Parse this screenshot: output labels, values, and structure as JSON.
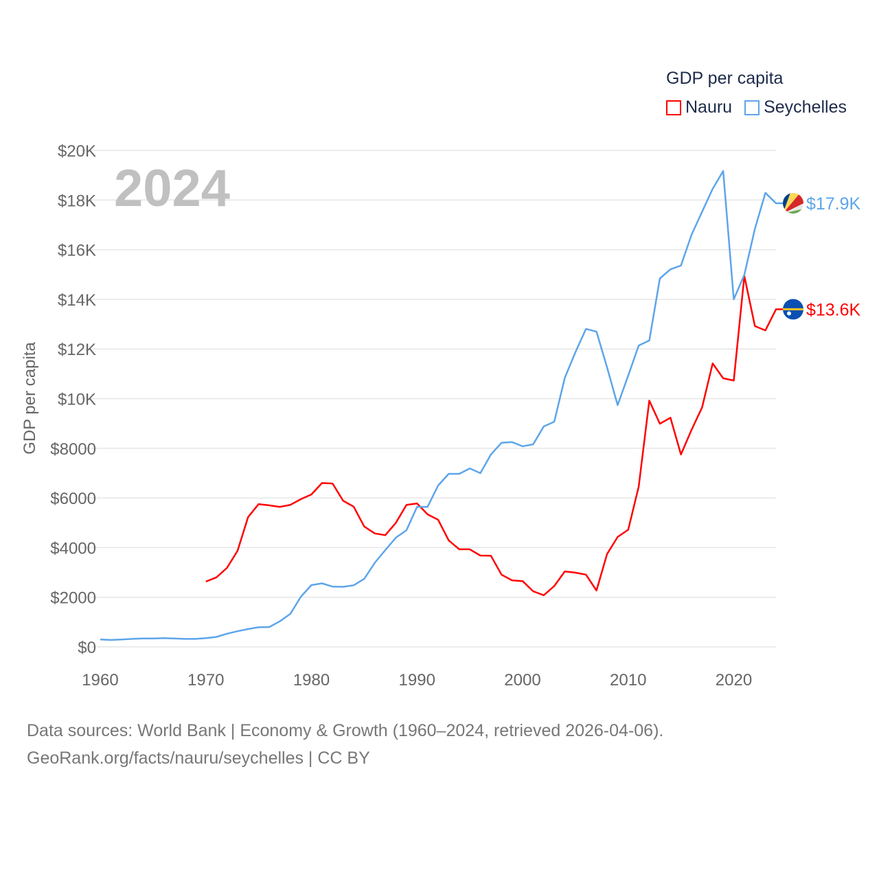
{
  "chart_data": {
    "type": "line",
    "title": "GDP per capita",
    "ylabel": "GDP per capita",
    "xlabel": "",
    "year_watermark": "2024",
    "xlim": [
      1960,
      2024
    ],
    "ylim": [
      0,
      20000
    ],
    "x_ticks": [
      1960,
      1970,
      1980,
      1990,
      2000,
      2010,
      2020
    ],
    "x_tick_labels": [
      "1960",
      "1970",
      "1980",
      "1990",
      "2000",
      "2010",
      "2020"
    ],
    "y_ticks": [
      0,
      2000,
      4000,
      6000,
      8000,
      10000,
      12000,
      14000,
      16000,
      18000,
      20000
    ],
    "y_tick_labels": [
      "$0",
      "$2000",
      "$4000",
      "$6000",
      "$8000",
      "$10K",
      "$12K",
      "$14K",
      "$16K",
      "$18K",
      "$20K"
    ],
    "grid": true,
    "legend_placement": "top-right",
    "series": [
      {
        "name": "Nauru",
        "color": "#ff0000",
        "end_label": "$13.6K",
        "flag": "nauru-flag",
        "x_start": 1970,
        "values": [
          2630,
          2800,
          3180,
          3870,
          5230,
          5750,
          5700,
          5640,
          5720,
          5950,
          6140,
          6600,
          6580,
          5890,
          5650,
          4850,
          4570,
          4500,
          5000,
          5720,
          5780,
          5340,
          5120,
          4290,
          3930,
          3930,
          3680,
          3670,
          2910,
          2680,
          2650,
          2240,
          2080,
          2450,
          3040,
          2990,
          2910,
          2270,
          3740,
          4430,
          4720,
          6460,
          9920,
          8990,
          9230,
          7750,
          8740,
          9650,
          11420,
          10820,
          10730,
          14940,
          12920,
          12750,
          13600
        ]
      },
      {
        "name": "Seychelles",
        "color": "#5da5ea",
        "end_label": "$17.9K",
        "flag": "seychelles-flag",
        "x_start": 1960,
        "values": [
          300,
          280,
          300,
          320,
          340,
          340,
          350,
          340,
          320,
          320,
          350,
          400,
          530,
          630,
          720,
          790,
          800,
          1030,
          1330,
          2020,
          2490,
          2560,
          2430,
          2420,
          2480,
          2740,
          3390,
          3900,
          4400,
          4700,
          5640,
          5640,
          6500,
          6970,
          6970,
          7190,
          7000,
          7750,
          8220,
          8250,
          8080,
          8160,
          8880,
          9070,
          10840,
          11870,
          12810,
          12700,
          11260,
          9740,
          10930,
          12140,
          12340,
          14840,
          15210,
          15360,
          16600,
          17530,
          18450,
          19170,
          14000,
          14990,
          16840,
          18290,
          17870
        ]
      }
    ]
  },
  "legend": {
    "title": "GDP per capita",
    "items": [
      "Nauru",
      "Seychelles"
    ]
  },
  "footer": {
    "line1": "Data sources: World Bank | Economy & Growth (1960–2024, retrieved 2026-04-06).",
    "line2": "GeoRank.org/facts/nauru/seychelles | CC BY"
  }
}
